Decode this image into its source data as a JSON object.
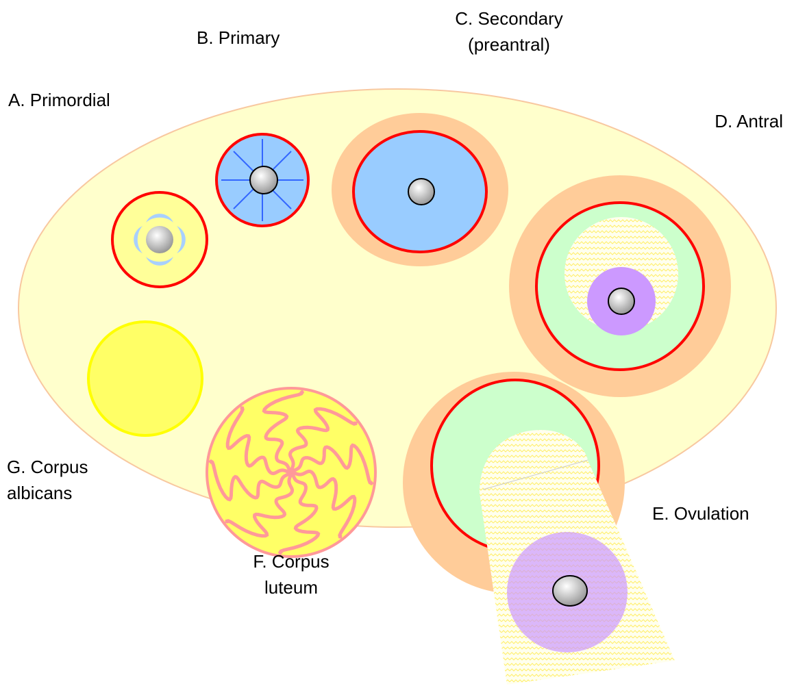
{
  "labels": {
    "a": [
      "A. Primordial"
    ],
    "b": [
      "B. Primary"
    ],
    "c": [
      "C. Secondary",
      "(preantral)"
    ],
    "d": [
      "D. Antral"
    ],
    "e": [
      "E. Ovulation"
    ],
    "f": [
      "F. Corpus",
      "luteum"
    ],
    "g": [
      "G. Corpus",
      "albicans"
    ]
  }
}
